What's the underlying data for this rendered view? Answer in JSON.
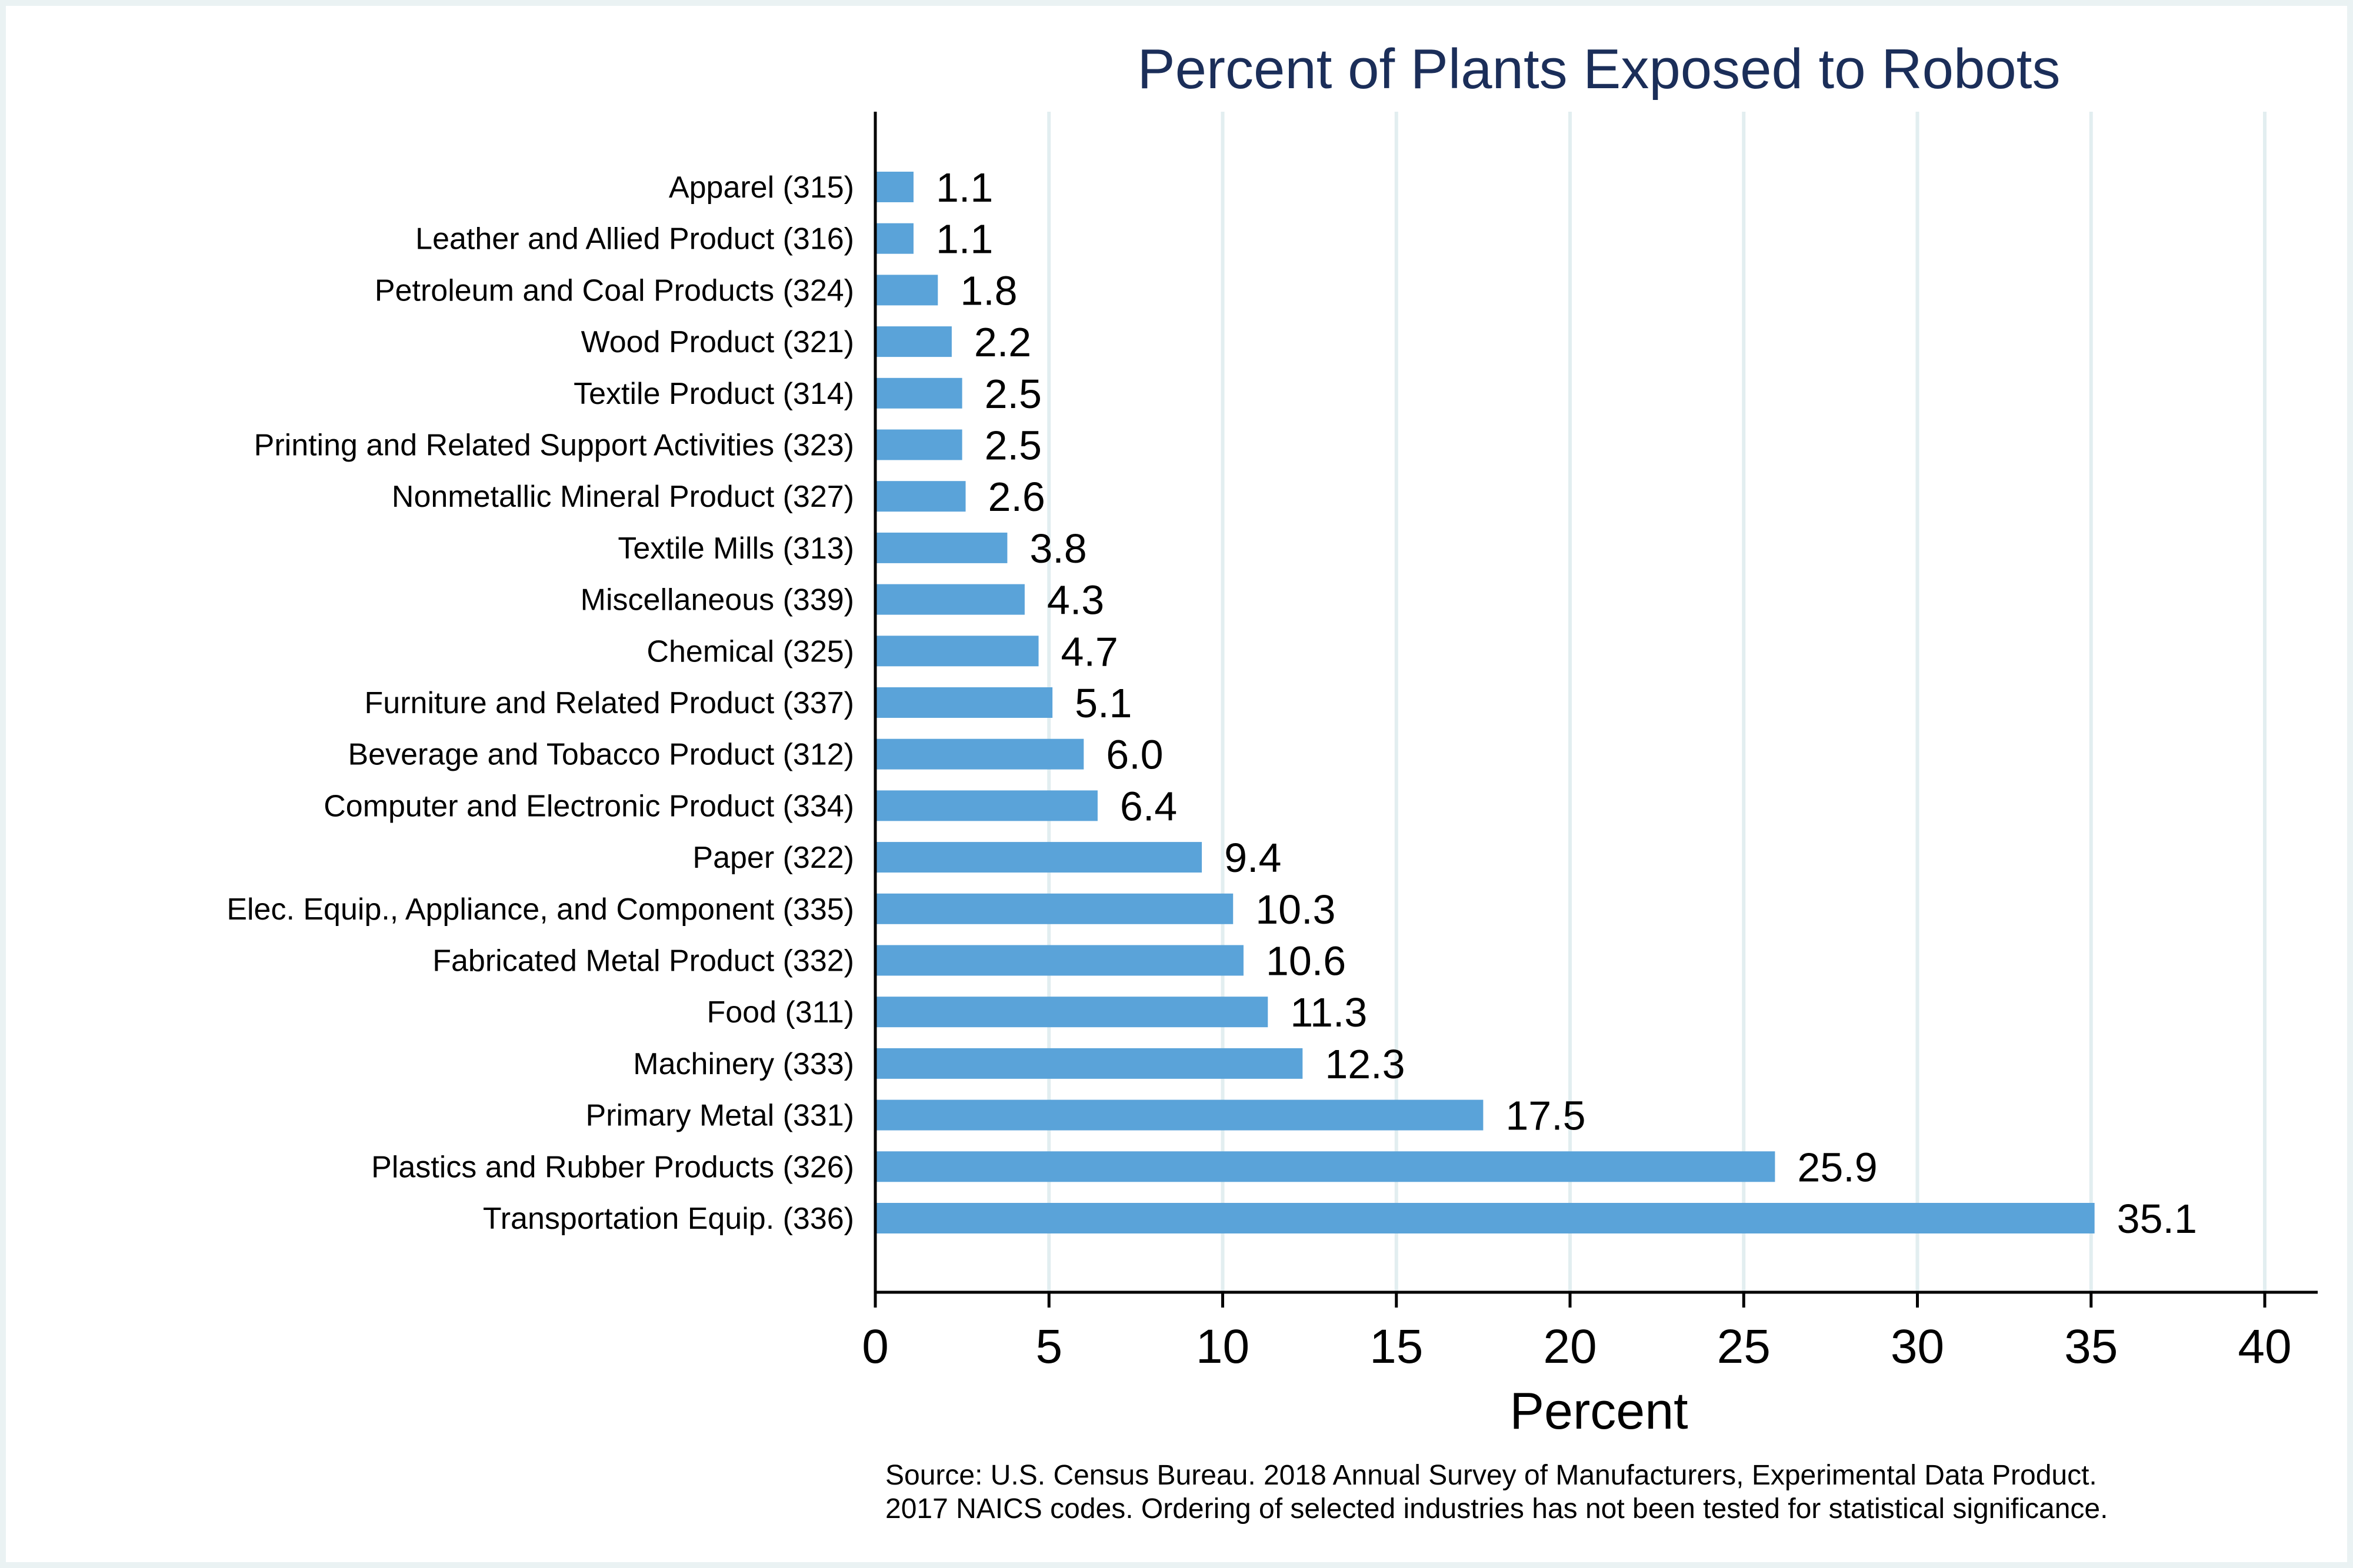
{
  "chart_data": {
    "type": "bar",
    "orientation": "horizontal",
    "title": "Percent of Plants Exposed to Robots",
    "xlabel": "Percent",
    "ylabel": "",
    "xlim": [
      0,
      40
    ],
    "x_ticks": [
      "0",
      "5",
      "10",
      "15",
      "20",
      "25",
      "30",
      "35",
      "40"
    ],
    "grid": true,
    "bar_color": "#5aa3d9",
    "categories": [
      "Apparel (315)",
      "Leather and Allied Product (316)",
      "Petroleum and Coal Products (324)",
      "Wood Product (321)",
      "Textile Product (314)",
      "Printing and Related Support Activities (323)",
      "Nonmetallic Mineral Product (327)",
      "Textile Mills (313)",
      "Miscellaneous (339)",
      "Chemical (325)",
      "Furniture and Related Product (337)",
      "Beverage and Tobacco Product (312)",
      "Computer and Electronic Product (334)",
      "Paper (322)",
      "Elec. Equip., Appliance, and Component (335)",
      "Fabricated Metal Product (332)",
      "Food (311)",
      "Machinery (333)",
      "Primary Metal (331)",
      "Plastics and Rubber Products (326)",
      "Transportation Equip. (336)"
    ],
    "values": [
      1.1,
      1.1,
      1.8,
      2.2,
      2.5,
      2.5,
      2.6,
      3.8,
      4.3,
      4.7,
      5.1,
      6.0,
      6.4,
      9.4,
      10.3,
      10.6,
      11.3,
      12.3,
      17.5,
      25.9,
      35.1
    ],
    "value_labels": [
      "1.1",
      "1.1",
      "1.8",
      "2.2",
      "2.5",
      "2.5",
      "2.6",
      "3.8",
      "4.3",
      "4.7",
      "5.1",
      "6.0",
      "6.4",
      "9.4",
      "10.3",
      "10.6",
      "11.3",
      "12.3",
      "17.5",
      "25.9",
      "35.1"
    ],
    "source_lines": [
      "Source: U.S. Census Bureau. 2018 Annual Survey of Manufacturers, Experimental Data Product.",
      "2017 NAICS codes. Ordering of selected industries has not been tested for statistical significance."
    ]
  }
}
